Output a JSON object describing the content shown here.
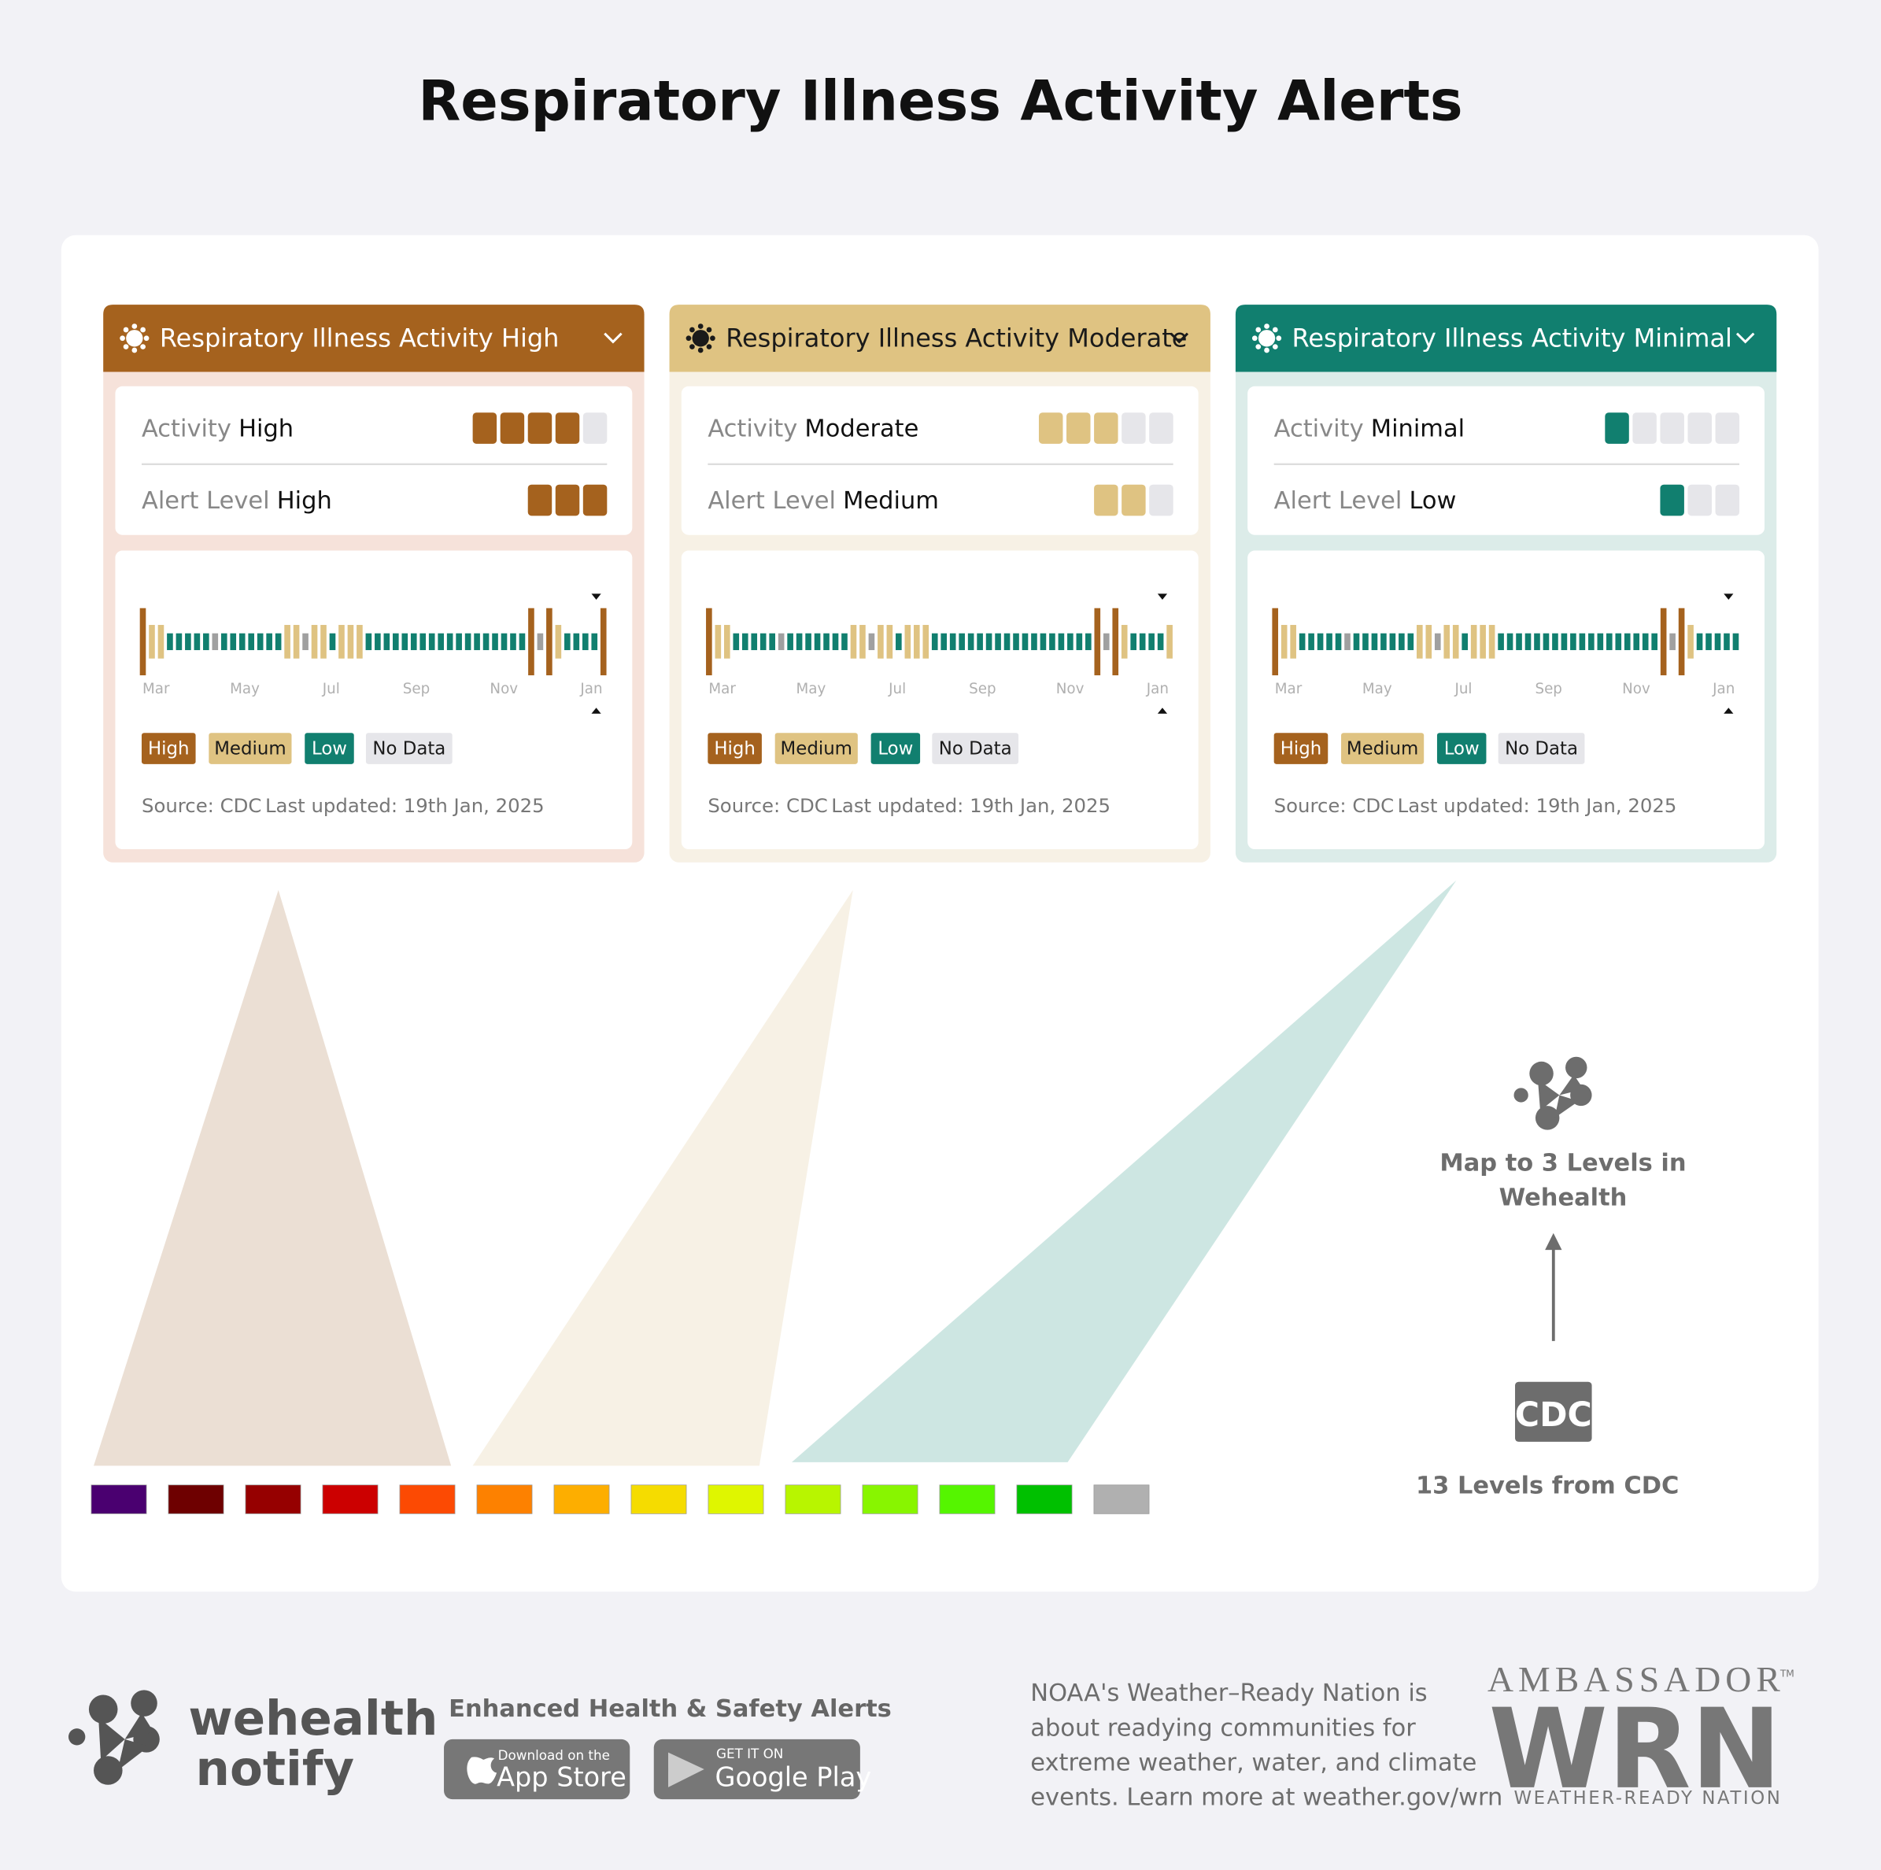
{
  "title": "Respiratory Illness Activity Alerts",
  "months": [
    "Mar",
    "May",
    "Jul",
    "Sep",
    "Nov",
    "Jan"
  ],
  "legend": [
    {
      "label": "High",
      "color": "#a5621e",
      "text": "#ffffff",
      "bar": "#a5621e"
    },
    {
      "label": "Medium",
      "color": "#dfc382",
      "text": "#1a1a1a",
      "bar": "#dfc382"
    },
    {
      "label": "Low",
      "color": "#117f6f",
      "text": "#ffffff",
      "bar": "#117f6f"
    },
    {
      "label": "No Data",
      "color": "#e6e6ea",
      "text": "#1a1a1a",
      "bar": "#a0a0a0"
    }
  ],
  "source": "Source: CDC",
  "updated": "Last updated: 19th Jan, 2025",
  "cards": [
    {
      "header": "Respiratory Illness Activity High",
      "header_color": "#a5621e",
      "header_text": "#ffffff",
      "background": "#f6e2da",
      "level_color": "#a5621e",
      "pointer": "#ebdfd4",
      "activity": {
        "label": "Activity",
        "value": "High",
        "filled": 4,
        "total": 5
      },
      "alert": {
        "label": "Alert Level",
        "value": "High",
        "filled": 3,
        "total": 3
      },
      "timeline": [
        0,
        1,
        1,
        2,
        2,
        2,
        2,
        2,
        3,
        2,
        2,
        2,
        2,
        2,
        2,
        2,
        1,
        1,
        3,
        1,
        1,
        2,
        1,
        1,
        1,
        2,
        2,
        2,
        2,
        2,
        2,
        2,
        2,
        2,
        2,
        2,
        2,
        2,
        2,
        2,
        2,
        2,
        2,
        0,
        3,
        0,
        1,
        2,
        2,
        2,
        2,
        0
      ]
    },
    {
      "header": "Respiratory Illness Activity Moderate",
      "header_color": "#dfc382",
      "header_text": "#1a1a1a",
      "background": "#f7f1e5",
      "level_color": "#dfc382",
      "pointer": "#f7f1e5",
      "activity": {
        "label": "Activity",
        "value": "Moderate",
        "filled": 3,
        "total": 5
      },
      "alert": {
        "label": "Alert Level",
        "value": "Medium",
        "filled": 2,
        "total": 3
      },
      "timeline": [
        0,
        1,
        1,
        2,
        2,
        2,
        2,
        2,
        3,
        2,
        2,
        2,
        2,
        2,
        2,
        2,
        1,
        1,
        3,
        1,
        1,
        2,
        1,
        1,
        1,
        2,
        2,
        2,
        2,
        2,
        2,
        2,
        2,
        2,
        2,
        2,
        2,
        2,
        2,
        2,
        2,
        2,
        2,
        0,
        3,
        0,
        1,
        2,
        2,
        2,
        2,
        1
      ]
    },
    {
      "header": "Respiratory Illness Activity Minimal",
      "header_color": "#117f6f",
      "header_text": "#ffffff",
      "background": "#dcece9",
      "level_color": "#117f6f",
      "pointer": "#cde6e2",
      "activity": {
        "label": "Activity",
        "value": "Minimal",
        "filled": 1,
        "total": 5
      },
      "alert": {
        "label": "Alert Level",
        "value": "Low",
        "filled": 1,
        "total": 3
      },
      "timeline": [
        0,
        1,
        1,
        2,
        2,
        2,
        2,
        2,
        3,
        2,
        2,
        2,
        2,
        2,
        2,
        2,
        1,
        1,
        3,
        1,
        1,
        2,
        1,
        1,
        1,
        2,
        2,
        2,
        2,
        2,
        2,
        2,
        2,
        2,
        2,
        2,
        2,
        2,
        2,
        2,
        2,
        2,
        2,
        0,
        3,
        0,
        1,
        2,
        2,
        2,
        2,
        2
      ]
    }
  ],
  "cdc_levels": [
    "#4a0070",
    "#6e0000",
    "#960000",
    "#cc0000",
    "#fc4a03",
    "#fd8100",
    "#fdae00",
    "#f5dc00",
    "#dff600",
    "#b8f500",
    "#88f500",
    "#55f500",
    "#00c000",
    "#b0b0b0"
  ],
  "mapping": {
    "wehealth_text": [
      "Map to 3 Levels in",
      "Wehealth"
    ],
    "cdc_badge": "CDC",
    "cdc_text": "13 Levels from CDC"
  },
  "footer": {
    "brand": [
      "wehealth",
      "notify"
    ],
    "tagline": "Enhanced Health & Safety Alerts",
    "app_store": [
      "Download on the",
      "App Store"
    ],
    "google_play": [
      "GET IT ON",
      "Google Play"
    ],
    "noaa": [
      "NOAA's Weather–Ready Nation is",
      "about readying communities for",
      "extreme weather, water, and climate",
      "events. Learn more at weather.gov/wrn"
    ],
    "wrn": {
      "top": "AMBASSADOR",
      "tm": "TM",
      "mark": "WRN",
      "bottom": "WEATHER-READY NATION"
    }
  }
}
